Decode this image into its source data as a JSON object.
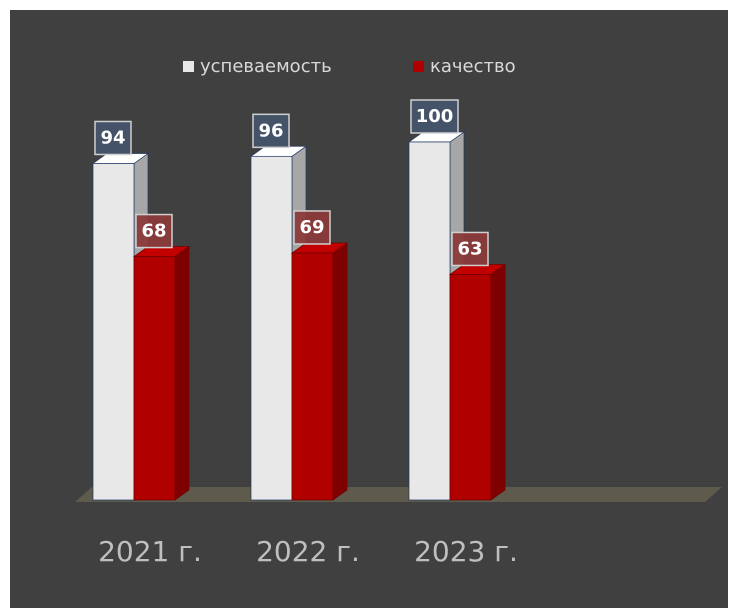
{
  "chart_data": {
    "type": "bar3d",
    "categories": [
      "2021 г.",
      "2022 г.",
      "2023 г."
    ],
    "series": [
      {
        "name": "успеваемость",
        "color": "#e8e8e8",
        "values": [
          94,
          96,
          100
        ]
      },
      {
        "name": "качество",
        "color": "#b00000",
        "values": [
          68,
          69,
          63
        ]
      }
    ],
    "ylim": [
      0,
      100
    ],
    "legend": "top"
  }
}
